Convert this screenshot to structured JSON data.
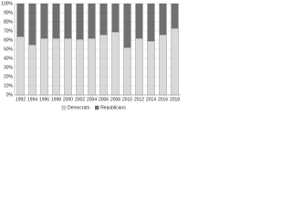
{
  "chart_data": {
    "type": "stacked_bar",
    "categories": [
      "1992",
      "1994",
      "1996",
      "1998",
      "2000",
      "2002",
      "2004",
      "2006",
      "2008",
      "2010",
      "2012",
      "2014",
      "2016",
      "2018"
    ],
    "series": [
      {
        "name": "Democrats",
        "color": "#d9d9d9",
        "values": [
          64,
          55,
          62,
          62,
          62,
          61,
          62,
          66,
          69,
          52,
          62,
          59,
          66,
          73
        ]
      },
      {
        "name": "Republicans",
        "color": "#707070",
        "values": [
          36,
          45,
          38,
          38,
          38,
          39,
          38,
          34,
          31,
          48,
          38,
          41,
          34,
          27
        ]
      }
    ],
    "ylim": [
      0,
      100
    ],
    "yticks": [
      {
        "value": 0,
        "label": "0%"
      },
      {
        "value": 10,
        "label": "10%"
      },
      {
        "value": 20,
        "label": "20%"
      },
      {
        "value": 30,
        "label": "30%"
      },
      {
        "value": 40,
        "label": "40%"
      },
      {
        "value": 50,
        "label": "50%"
      },
      {
        "value": 60,
        "label": "60%"
      },
      {
        "value": 70,
        "label": "70%"
      },
      {
        "value": 80,
        "label": "80%"
      },
      {
        "value": 90,
        "label": "90%"
      },
      {
        "value": 100,
        "label": "100%"
      }
    ],
    "grid": true
  }
}
